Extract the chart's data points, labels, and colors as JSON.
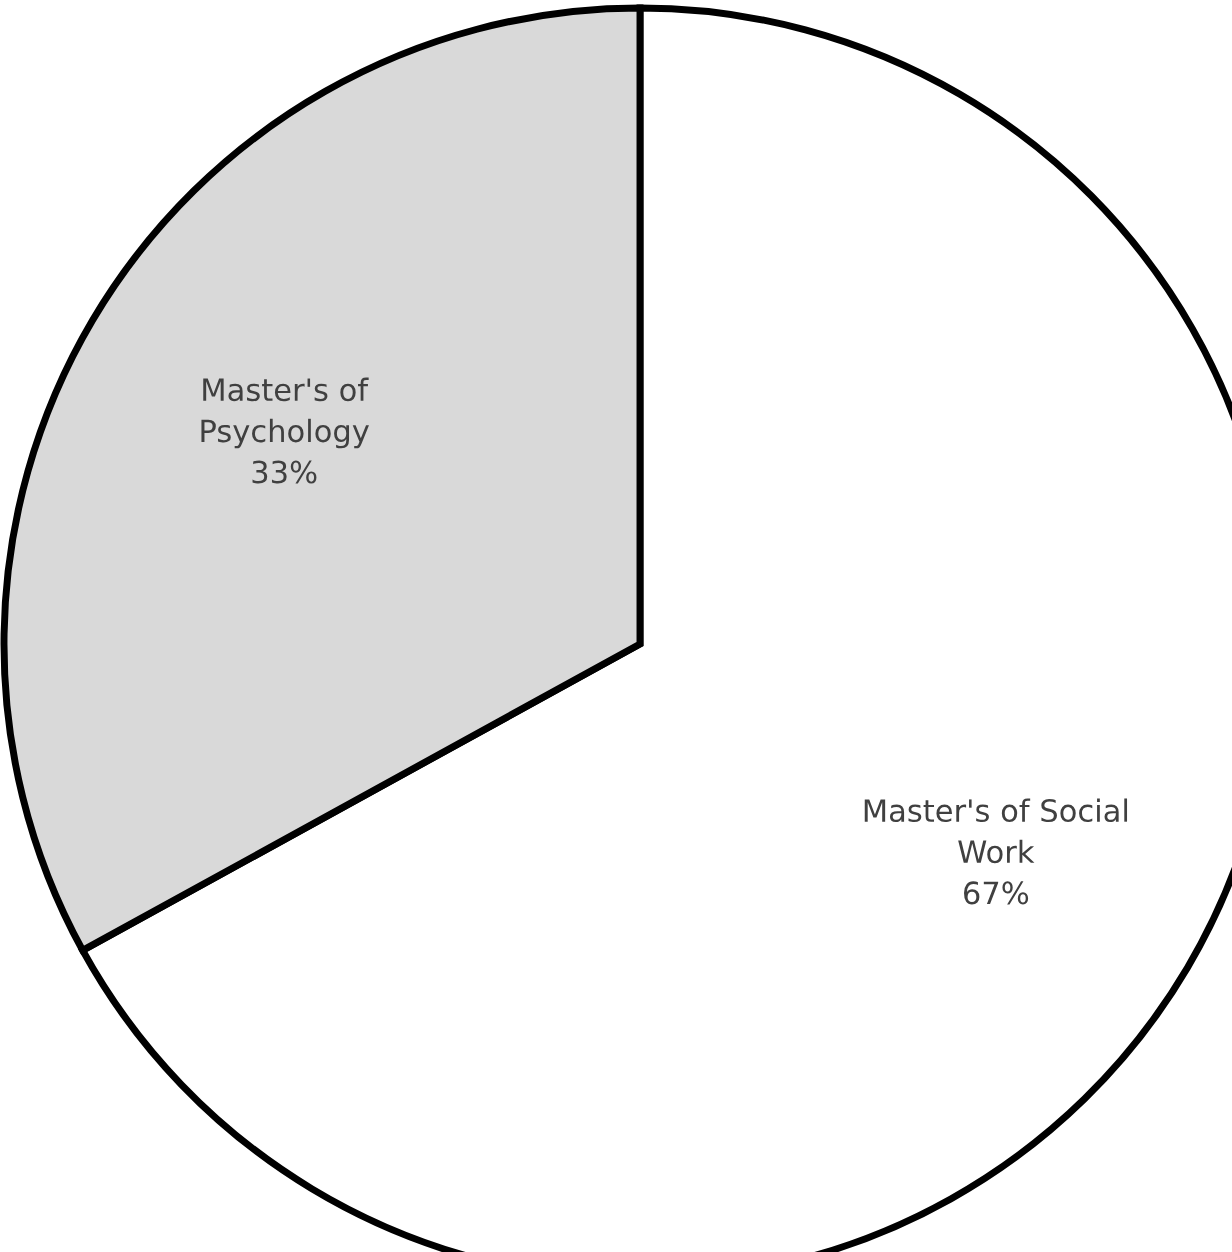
{
  "chart_data": {
    "type": "pie",
    "categories": [
      "Master's of Social Work",
      "Master's of Psychology"
    ],
    "values": [
      67,
      33
    ],
    "colors": [
      "#ffffff",
      "#d9d9d9"
    ],
    "value_labels": [
      "67%",
      "33%"
    ]
  }
}
